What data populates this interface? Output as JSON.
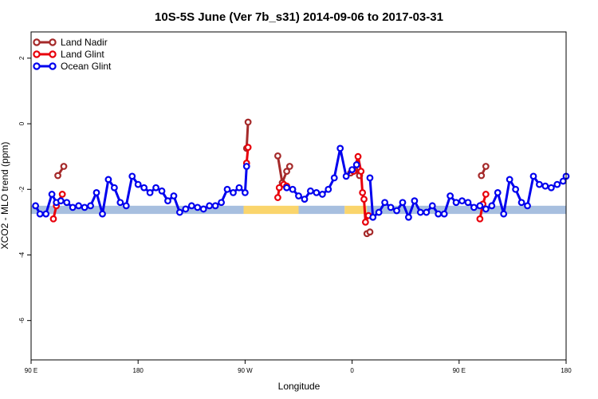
{
  "chart_data": {
    "type": "line",
    "title": "10S-5S June (Ver 7b_s31)   2014-09-06 to 2017-03-31",
    "xlabel": "Longitude",
    "ylabel": "XCO2 - MLO trend (ppm)",
    "xlim": [
      90,
      450
    ],
    "ylim": [
      -7.2,
      2.8
    ],
    "x_ticks": [
      {
        "value": 90,
        "label": "90 E"
      },
      {
        "value": 162,
        "label": "180"
      },
      {
        "value": 234,
        "label": "90 W"
      },
      {
        "value": 306,
        "label": "0"
      },
      {
        "value": 378,
        "label": "90 E"
      },
      {
        "value": 450,
        "label": "180"
      }
    ],
    "y_ticks": [
      {
        "value": 2,
        "label": "2"
      },
      {
        "value": 0,
        "label": "0"
      },
      {
        "value": -2,
        "label": "-2"
      },
      {
        "value": -4,
        "label": "-4"
      },
      {
        "value": -6,
        "label": "-6"
      }
    ],
    "legend": {
      "position": "top-left"
    },
    "grid": false,
    "surface_band": {
      "y_range": [
        -2.75,
        -2.5
      ],
      "segments": [
        {
          "x": [
            90,
            233
          ],
          "color": "#a7bfdf"
        },
        {
          "x": [
            233,
            270
          ],
          "color": "#fad56c"
        },
        {
          "x": [
            270,
            301
          ],
          "color": "#a7bfdf"
        },
        {
          "x": [
            301,
            316
          ],
          "color": "#fad56c"
        },
        {
          "x": [
            316,
            450
          ],
          "color": "#a7bfdf"
        }
      ]
    },
    "series": [
      {
        "name": "Land Nadir",
        "color": "#a52a2a",
        "segments": [
          {
            "x": [
              108,
              112
            ],
            "y": [
              -1.58,
              -1.3
            ]
          },
          {
            "x": [
              235,
              236
            ],
            "y": [
              -0.75,
              0.05
            ]
          },
          {
            "x": [
              256,
              259,
              262,
              264
            ],
            "y": [
              -0.98,
              -1.8,
              -1.45,
              -1.3
            ]
          },
          {
            "x": [
              305,
              308,
              311
            ],
            "y": [
              -1.5,
              -1.42,
              -1.58
            ]
          },
          {
            "x": [
              316,
              318
            ],
            "y": [
              -3.35,
              -3.3
            ]
          },
          {
            "x": [
              393,
              396
            ],
            "y": [
              -1.58,
              -1.3
            ]
          }
        ]
      },
      {
        "name": "Land Glint",
        "color": "#e8000b",
        "segments": [
          {
            "x": [
              105,
              107,
              111
            ],
            "y": [
              -2.9,
              -2.5,
              -2.15
            ]
          },
          {
            "x": [
              235,
              236
            ],
            "y": [
              -1.2,
              -0.72
            ]
          },
          {
            "x": [
              256,
              257,
              260,
              262
            ],
            "y": [
              -2.25,
              -1.95,
              -1.85,
              -1.9
            ]
          },
          {
            "x": [
              307,
              310,
              312,
              313,
              314,
              315,
              317
            ],
            "y": [
              -1.45,
              -1.0,
              -1.45,
              -2.1,
              -2.3,
              -3.0,
              -2.8
            ]
          },
          {
            "x": [
              392,
              394,
              396
            ],
            "y": [
              -2.9,
              -2.45,
              -2.15
            ]
          }
        ]
      },
      {
        "name": "Ocean Glint",
        "color": "#0000ee",
        "segments": [
          {
            "x": [
              93,
              96,
              100,
              104,
              107,
              110,
              114,
              118,
              122,
              126,
              130,
              134,
              138,
              142,
              146,
              150,
              154,
              158,
              162,
              166,
              170,
              174,
              178,
              182,
              186,
              190,
              194,
              198,
              202,
              206,
              210,
              214,
              218,
              222,
              226,
              230,
              234,
              235
            ],
            "y": [
              -2.5,
              -2.75,
              -2.75,
              -2.15,
              -2.4,
              -2.35,
              -2.4,
              -2.55,
              -2.5,
              -2.55,
              -2.5,
              -2.1,
              -2.75,
              -1.7,
              -1.95,
              -2.4,
              -2.5,
              -1.6,
              -1.85,
              -1.95,
              -2.1,
              -1.95,
              -2.05,
              -2.35,
              -2.2,
              -2.7,
              -2.6,
              -2.5,
              -2.55,
              -2.6,
              -2.5,
              -2.5,
              -2.4,
              -2.0,
              -2.1,
              -1.95,
              -2.1,
              -1.3
            ]
          },
          {
            "x": [
              262,
              266,
              270,
              274,
              278,
              282,
              286,
              290,
              294,
              298,
              302,
              306,
              309
            ],
            "y": [
              -1.95,
              -2.0,
              -2.2,
              -2.3,
              -2.05,
              -2.1,
              -2.15,
              -2.0,
              -1.65,
              -0.75,
              -1.6,
              -1.4,
              -1.25
            ]
          },
          {
            "x": [
              318,
              320,
              324,
              328,
              332,
              336,
              340,
              344,
              348,
              352,
              356,
              360,
              364,
              368,
              372,
              376,
              380,
              384,
              388,
              392,
              396,
              400,
              404,
              408,
              412,
              416,
              420,
              424,
              428,
              432,
              436,
              440,
              444,
              448,
              450
            ],
            "y": [
              -1.65,
              -2.85,
              -2.7,
              -2.4,
              -2.55,
              -2.65,
              -2.4,
              -2.85,
              -2.35,
              -2.7,
              -2.7,
              -2.5,
              -2.75,
              -2.75,
              -2.2,
              -2.4,
              -2.35,
              -2.4,
              -2.55,
              -2.5,
              -2.6,
              -2.5,
              -2.1,
              -2.75,
              -1.7,
              -2.0,
              -2.4,
              -2.5,
              -1.6,
              -1.85,
              -1.9,
              -1.95,
              -1.85,
              -1.75,
              -1.6
            ]
          }
        ]
      }
    ]
  }
}
